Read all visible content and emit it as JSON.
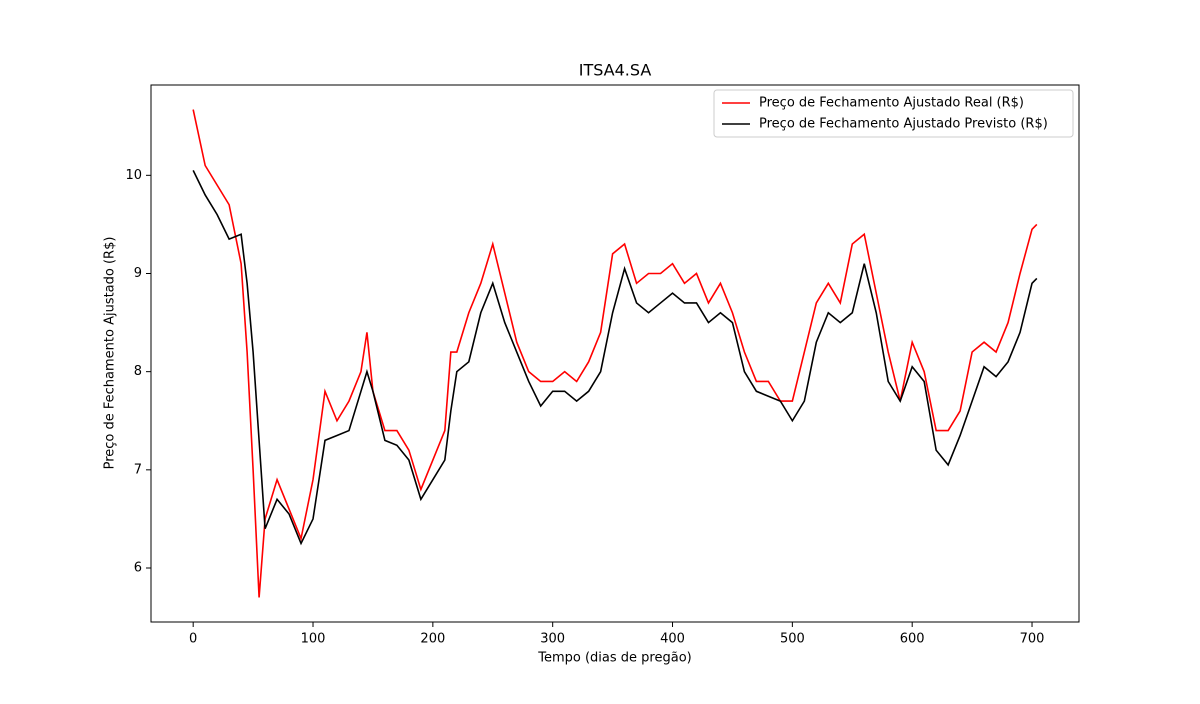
{
  "chart_data": {
    "type": "line",
    "title": "ITSA4.SA",
    "xlabel": "Tempo (dias de pregão)",
    "ylabel": "Preço de Fechamento Ajustado (R$)",
    "x": [
      0,
      10,
      20,
      30,
      40,
      45,
      50,
      55,
      60,
      70,
      80,
      90,
      100,
      110,
      120,
      130,
      140,
      145,
      150,
      160,
      170,
      180,
      190,
      200,
      210,
      215,
      220,
      230,
      240,
      250,
      260,
      270,
      280,
      290,
      300,
      310,
      320,
      330,
      340,
      350,
      360,
      370,
      380,
      390,
      400,
      410,
      420,
      430,
      440,
      450,
      460,
      470,
      480,
      490,
      500,
      510,
      520,
      530,
      540,
      550,
      560,
      570,
      580,
      590,
      600,
      610,
      620,
      630,
      640,
      650,
      660,
      670,
      680,
      690,
      700,
      704
    ],
    "series": [
      {
        "name": "Preço de Fechamento Ajustado Real (R$)",
        "color": "#ff0000",
        "values": [
          10.67,
          10.1,
          9.9,
          9.7,
          9.1,
          8.2,
          7.0,
          5.7,
          6.5,
          6.9,
          6.6,
          6.3,
          6.9,
          7.8,
          7.5,
          7.7,
          8.0,
          8.4,
          7.8,
          7.4,
          7.4,
          7.2,
          6.8,
          7.1,
          7.4,
          8.2,
          8.2,
          8.6,
          8.9,
          9.3,
          8.8,
          8.3,
          8.0,
          7.9,
          7.9,
          8.0,
          7.9,
          8.1,
          8.4,
          9.2,
          9.3,
          8.9,
          9.0,
          9.0,
          9.1,
          8.9,
          9.0,
          8.7,
          8.9,
          8.6,
          8.2,
          7.9,
          7.9,
          7.7,
          7.7,
          8.2,
          8.7,
          8.9,
          8.7,
          9.3,
          9.4,
          8.8,
          8.2,
          7.7,
          8.3,
          8.0,
          7.4,
          7.4,
          7.6,
          8.2,
          8.3,
          8.2,
          8.5,
          9.0,
          9.45,
          9.5
        ]
      },
      {
        "name": "Preço de Fechamento Ajustado Previsto (R$)",
        "color": "#000000",
        "values": [
          10.05,
          9.8,
          9.6,
          9.35,
          9.4,
          8.9,
          8.2,
          7.3,
          6.4,
          6.7,
          6.55,
          6.25,
          6.5,
          7.3,
          7.35,
          7.4,
          7.8,
          8.0,
          7.8,
          7.3,
          7.25,
          7.1,
          6.7,
          6.9,
          7.1,
          7.6,
          8.0,
          8.1,
          8.6,
          8.9,
          8.5,
          8.2,
          7.9,
          7.65,
          7.8,
          7.8,
          7.7,
          7.8,
          8.0,
          8.6,
          9.05,
          8.7,
          8.6,
          8.7,
          8.8,
          8.7,
          8.7,
          8.5,
          8.6,
          8.5,
          8.0,
          7.8,
          7.75,
          7.7,
          7.5,
          7.7,
          8.3,
          8.6,
          8.5,
          8.6,
          9.1,
          8.6,
          7.9,
          7.7,
          8.05,
          7.9,
          7.2,
          7.05,
          7.35,
          7.7,
          8.05,
          7.95,
          8.1,
          8.4,
          8.9,
          8.95
        ]
      }
    ],
    "xlim": [
      -35.2,
      739.2
    ],
    "ylim": [
      5.45,
      10.92
    ],
    "xticks": [
      0,
      100,
      200,
      300,
      400,
      500,
      600,
      700
    ],
    "yticks": [
      6,
      7,
      8,
      9,
      10
    ],
    "legend": "upper right"
  }
}
